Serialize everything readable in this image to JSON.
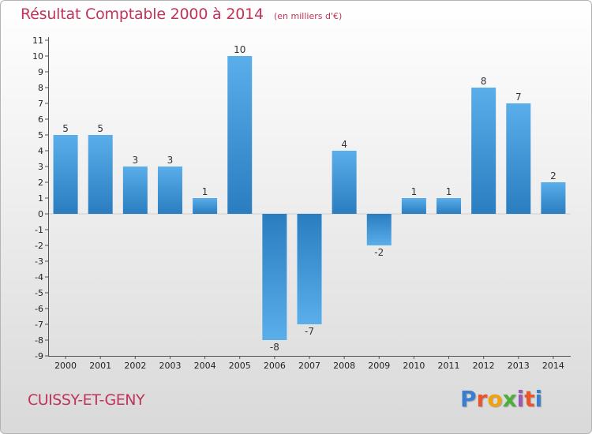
{
  "header": {
    "title": "Résultat Comptable 2000 à 2014",
    "unit": "(en milliers d'€)"
  },
  "footer": {
    "town": "CUISSY-ET-GENY",
    "logo": "Proxiti",
    "logo_colors": [
      "#3a7fcf",
      "#e8552d",
      "#f1a20f",
      "#4caf3a",
      "#9b59b6",
      "#e8552d",
      "#3a7fcf"
    ]
  },
  "colors": {
    "bar_light": "#5aaeea",
    "bar_dark": "#2a7dbf",
    "axis": "#555555",
    "grid": "#cfcfcf"
  },
  "chart_data": {
    "type": "bar",
    "title": "Résultat Comptable 2000 à 2014",
    "xlabel": "",
    "ylabel": "",
    "ylim": [
      -9,
      11
    ],
    "yticks": [
      11,
      10,
      9,
      8,
      7,
      6,
      5,
      4,
      3,
      2,
      1,
      0,
      -1,
      -2,
      -3,
      -4,
      -5,
      -6,
      -7,
      -8,
      -9
    ],
    "categories": [
      "2000",
      "2001",
      "2002",
      "2003",
      "2004",
      "2005",
      "2006",
      "2007",
      "2008",
      "2009",
      "2010",
      "2011",
      "2012",
      "2013",
      "2014"
    ],
    "values": [
      5,
      5,
      3,
      3,
      1,
      10,
      -8,
      -7,
      4,
      -2,
      1,
      1,
      8,
      7,
      2
    ],
    "labels": [
      "5",
      "5",
      "3",
      "3",
      "1",
      "10",
      "-8",
      "-7",
      "4",
      "-2",
      "1",
      "1",
      "8",
      "7",
      "2"
    ]
  }
}
